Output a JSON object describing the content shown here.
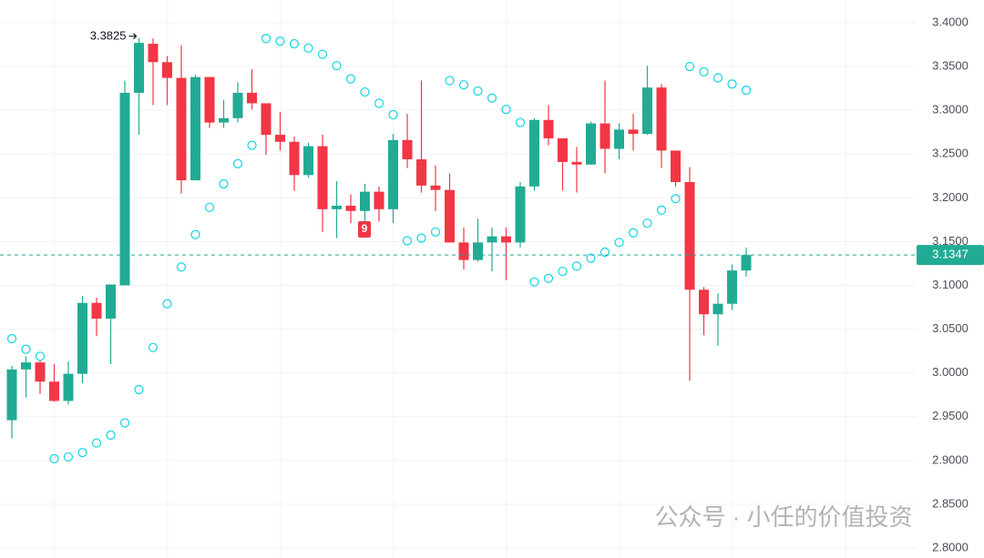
{
  "chart_data": {
    "type": "candlestick",
    "ylim": [
      2.8,
      3.4
    ],
    "yticks": [
      {
        "value": 2.8,
        "label": "2.8000"
      },
      {
        "value": 2.85,
        "label": "2.8500"
      },
      {
        "value": 2.9,
        "label": "2.9000"
      },
      {
        "value": 2.95,
        "label": "2.9500"
      },
      {
        "value": 3.0,
        "label": "3.0000"
      },
      {
        "value": 3.05,
        "label": "3.0500"
      },
      {
        "value": 3.1,
        "label": "3.1000"
      },
      {
        "value": 3.15,
        "label": "3.1500"
      },
      {
        "value": 3.2,
        "label": "3.2000"
      },
      {
        "value": 3.25,
        "label": "3.2500"
      },
      {
        "value": 3.3,
        "label": "3.3000"
      },
      {
        "value": 3.35,
        "label": "3.3500"
      },
      {
        "value": 3.4,
        "label": "3.4000"
      }
    ],
    "grid": true,
    "up_color": "#22ab94",
    "down_color": "#f23645",
    "sar_color": "#1fd8e6",
    "signal_label": "9",
    "watermark": "公众号 · 小任的价值投资",
    "series": [
      {
        "open": [
          2.946,
          3.004,
          3.012,
          2.99,
          2.968,
          2.999,
          3.08,
          3.062,
          3.1,
          3.32,
          3.376,
          3.355,
          3.337,
          3.22,
          3.338,
          3.286,
          3.291,
          3.32,
          3.308,
          3.272,
          3.264,
          3.226,
          3.259,
          3.187,
          3.191,
          3.185,
          3.207,
          3.187,
          3.266,
          3.244,
          3.214,
          3.209,
          3.149,
          3.129,
          3.149,
          3.156,
          3.149,
          3.213,
          3.289,
          3.268,
          3.241,
          3.238,
          3.285,
          3.256,
          3.278,
          3.273,
          3.326,
          3.254,
          3.218,
          3.095,
          3.067,
          3.079,
          3.117
        ],
        "high": [
          3.008,
          3.019,
          3.014,
          3.01,
          3.013,
          3.088,
          3.086,
          3.101,
          3.334,
          3.3825,
          3.382,
          3.362,
          3.374,
          3.341,
          3.338,
          3.312,
          3.332,
          3.347,
          3.308,
          3.298,
          3.27,
          3.263,
          3.272,
          3.219,
          3.204,
          3.216,
          3.213,
          3.273,
          3.296,
          3.334,
          3.237,
          3.228,
          3.166,
          3.176,
          3.166,
          3.166,
          3.218,
          3.291,
          3.306,
          3.268,
          3.258,
          3.287,
          3.334,
          3.285,
          3.296,
          3.351,
          3.33,
          3.254,
          3.235,
          3.098,
          3.091,
          3.124,
          3.143
        ],
        "low": [
          2.925,
          2.972,
          2.976,
          2.967,
          2.964,
          2.988,
          3.042,
          3.01,
          3.1,
          3.272,
          3.306,
          3.306,
          3.205,
          3.22,
          3.28,
          3.28,
          3.286,
          3.301,
          3.249,
          3.254,
          3.208,
          3.223,
          3.161,
          3.154,
          3.171,
          3.168,
          3.173,
          3.171,
          3.234,
          3.206,
          3.185,
          3.149,
          3.118,
          3.127,
          3.116,
          3.106,
          3.143,
          3.208,
          3.26,
          3.208,
          3.206,
          3.238,
          3.228,
          3.244,
          3.254,
          3.272,
          3.234,
          3.213,
          2.991,
          3.043,
          3.031,
          3.072,
          3.11
        ],
        "close": [
          3.004,
          3.012,
          2.99,
          2.968,
          2.999,
          3.08,
          3.062,
          3.101,
          3.32,
          3.377,
          3.355,
          3.337,
          3.22,
          3.338,
          3.286,
          3.291,
          3.32,
          3.308,
          3.272,
          3.264,
          3.226,
          3.259,
          3.187,
          3.191,
          3.185,
          3.207,
          3.187,
          3.266,
          3.244,
          3.214,
          3.209,
          3.149,
          3.129,
          3.149,
          3.156,
          3.149,
          3.213,
          3.289,
          3.268,
          3.241,
          3.238,
          3.285,
          3.256,
          3.278,
          3.273,
          3.326,
          3.254,
          3.218,
          3.095,
          3.067,
          3.079,
          3.117,
          3.1347
        ],
        "sar": [
          3.039,
          3.027,
          3.019,
          2.902,
          2.904,
          2.909,
          2.92,
          2.929,
          2.943,
          2.981,
          3.029,
          3.079,
          3.121,
          3.158,
          3.189,
          3.216,
          3.239,
          3.26,
          3.382,
          3.379,
          3.376,
          3.371,
          3.364,
          3.351,
          3.336,
          3.321,
          3.308,
          3.295,
          3.151,
          3.154,
          3.161,
          3.334,
          3.329,
          3.322,
          3.314,
          3.301,
          3.286,
          3.104,
          3.108,
          3.116,
          3.122,
          3.131,
          3.138,
          3.149,
          3.16,
          3.171,
          3.186,
          3.199,
          3.35,
          3.344,
          3.337,
          3.33,
          3.323
        ]
      }
    ]
  }
}
